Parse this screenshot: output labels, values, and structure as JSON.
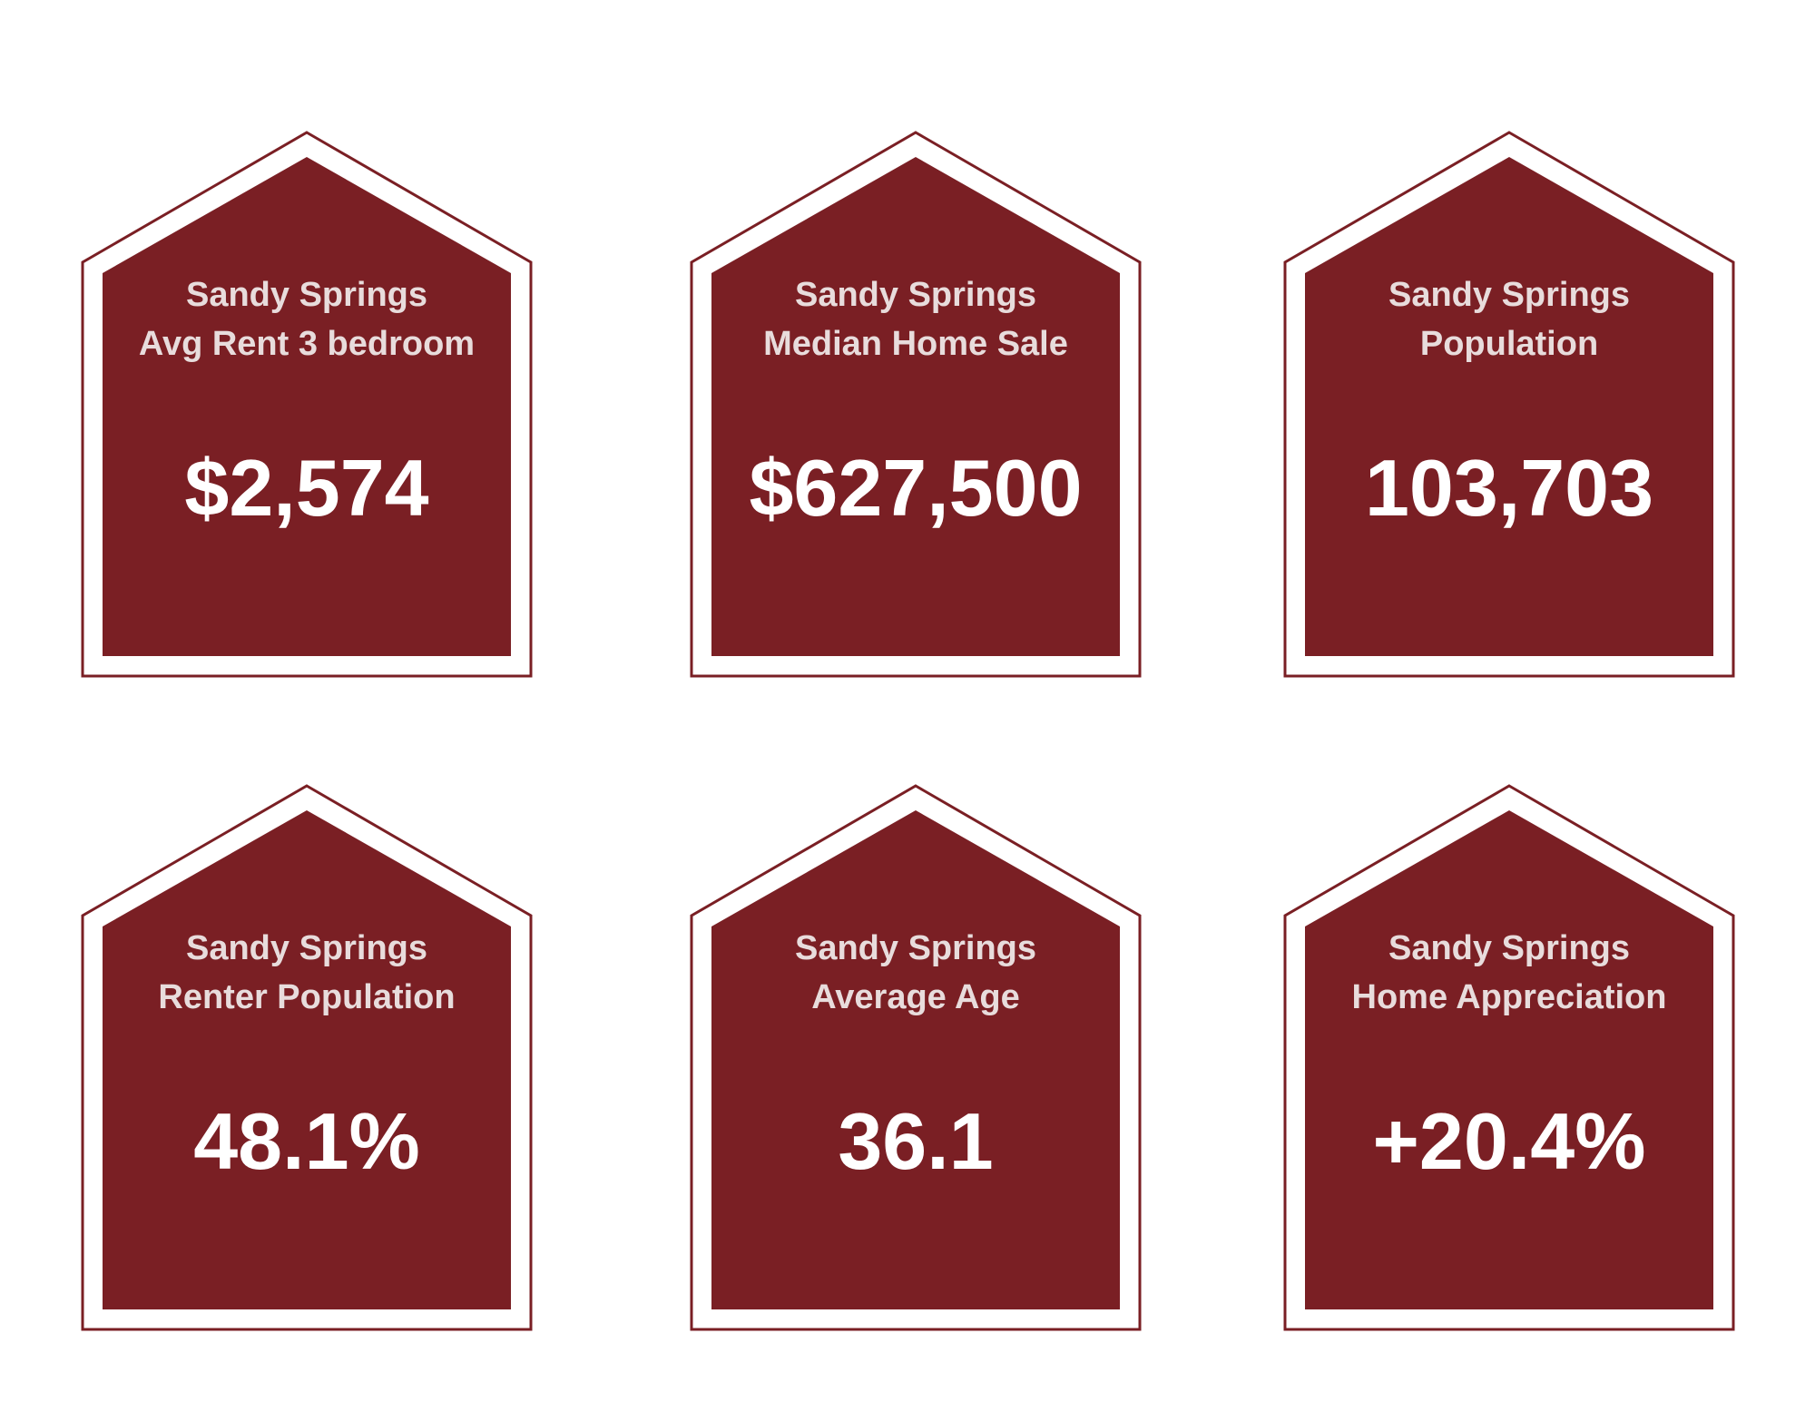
{
  "colors": {
    "tile_fill": "#7a1f24",
    "label_text": "#e8dcdc",
    "value_text": "#ffffff",
    "background": "#ffffff"
  },
  "tiles": [
    {
      "line1": "Sandy Springs",
      "line2": "Avg Rent 3 bedroom",
      "value": "$2,574"
    },
    {
      "line1": "Sandy Springs",
      "line2": "Median Home Sale",
      "value": "$627,500"
    },
    {
      "line1": "Sandy Springs",
      "line2": "Population",
      "value": "103,703"
    },
    {
      "line1": "Sandy Springs",
      "line2": "Renter Population",
      "value": "48.1%"
    },
    {
      "line1": "Sandy Springs",
      "line2": "Average Age",
      "value": "36.1"
    },
    {
      "line1": "Sandy Springs",
      "line2": "Home Appreciation",
      "value": "+20.4%"
    }
  ]
}
